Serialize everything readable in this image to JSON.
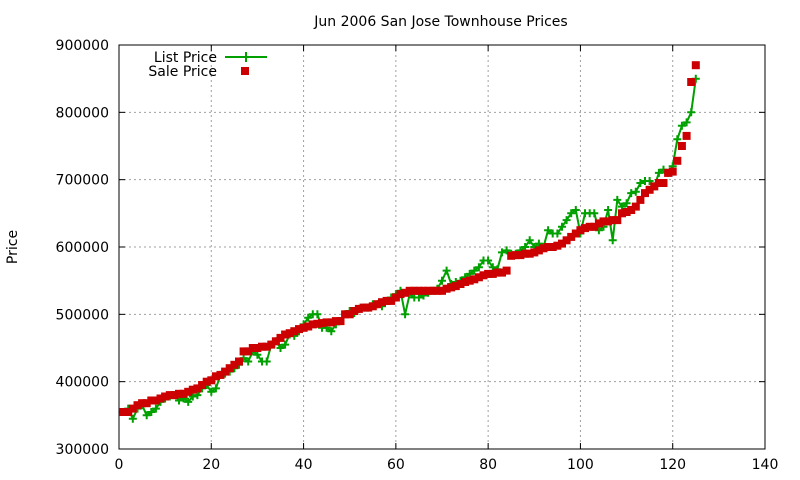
{
  "chart_data": {
    "type": "line",
    "title": "Jun 2006 San Jose Townhouse Prices",
    "xlabel": "",
    "ylabel": "Price",
    "xlim": [
      0,
      140
    ],
    "ylim": [
      300000,
      900000
    ],
    "x_ticks": [
      "0",
      "20",
      "40",
      "60",
      "80",
      "100",
      "120",
      "140"
    ],
    "y_ticks": [
      "300000",
      "400000",
      "500000",
      "600000",
      "700000",
      "800000",
      "900000"
    ],
    "grid": true,
    "legend_position": "top-left",
    "series": [
      {
        "name": "List Price",
        "color": "#00a000",
        "style": "line-with-plus",
        "values": [
          355000,
          360000,
          345000,
          360000,
          365000,
          350000,
          355000,
          360000,
          370000,
          375000,
          378000,
          380000,
          372000,
          375000,
          370000,
          378000,
          380000,
          390000,
          395000,
          385000,
          390000,
          410000,
          412000,
          415000,
          420000,
          425000,
          435000,
          430000,
          445000,
          440000,
          430000,
          430000,
          455000,
          460000,
          450000,
          455000,
          470000,
          468000,
          475000,
          485000,
          495000,
          500000,
          500000,
          480000,
          480000,
          475000,
          485000,
          490000,
          500000,
          505000,
          502000,
          508000,
          510000,
          510000,
          515000,
          515000,
          512000,
          520000,
          525000,
          530000,
          535000,
          500000,
          530000,
          525000,
          525000,
          528000,
          532000,
          535000,
          538000,
          550000,
          565000,
          545000,
          548000,
          550000,
          555000,
          560000,
          565000,
          570000,
          580000,
          580000,
          570000,
          567000,
          592000,
          595000,
          590000,
          590000,
          595000,
          600000,
          610000,
          600000,
          605000,
          600000,
          625000,
          620000,
          620000,
          630000,
          640000,
          650000,
          655000,
          620000,
          650000,
          650000,
          650000,
          625000,
          630000,
          655000,
          610000,
          670000,
          660000,
          665000,
          680000,
          682000,
          695000,
          698000,
          698000,
          690000,
          710000,
          715000,
          710000,
          720000,
          760000,
          780000,
          785000,
          800000,
          850000
        ],
        "x_start": 1
      },
      {
        "name": "Sale Price",
        "color": "#cc0000",
        "style": "squares",
        "values": [
          355000,
          355000,
          360000,
          365000,
          368000,
          368000,
          372000,
          372000,
          375000,
          378000,
          380000,
          380000,
          382000,
          382000,
          385000,
          388000,
          390000,
          395000,
          400000,
          402000,
          408000,
          410000,
          415000,
          420000,
          425000,
          430000,
          445000,
          445000,
          450000,
          450000,
          452000,
          452000,
          455000,
          460000,
          465000,
          470000,
          472000,
          475000,
          478000,
          480000,
          482000,
          485000,
          486000,
          487000,
          488000,
          488000,
          490000,
          490000,
          500000,
          500000,
          505000,
          508000,
          510000,
          510000,
          512000,
          515000,
          518000,
          520000,
          520000,
          525000,
          530000,
          532000,
          535000,
          535000,
          535000,
          535000,
          535000,
          535000,
          535000,
          535000,
          538000,
          540000,
          542000,
          545000,
          548000,
          550000,
          552000,
          555000,
          558000,
          560000,
          560000,
          562000,
          562000,
          565000,
          587000,
          588000,
          588000,
          590000,
          590000,
          592000,
          595000,
          598000,
          600000,
          600000,
          602000,
          605000,
          610000,
          615000,
          620000,
          625000,
          628000,
          630000,
          630000,
          635000,
          638000,
          638000,
          640000,
          640000,
          650000,
          652000,
          655000,
          660000,
          670000,
          680000,
          685000,
          690000,
          695000,
          695000,
          710000,
          712000,
          728000,
          750000,
          765000,
          845000,
          870000
        ],
        "x_start": 1
      }
    ]
  }
}
